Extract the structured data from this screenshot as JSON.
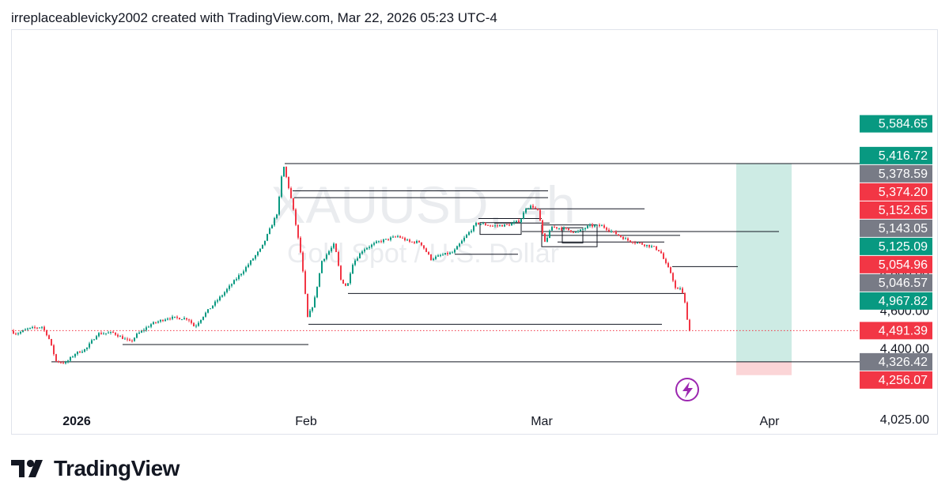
{
  "header": {
    "attribution": "irreplaceablevicky2002 created with TradingView.com, Mar 22, 2026 05:23 UTC-4"
  },
  "brand": {
    "name": "TradingView",
    "icon": "tradingview-logo-icon"
  },
  "watermark": {
    "symbol": "XAUUSD, 4h",
    "description": "Gold Spot / U.S. Dollar"
  },
  "flash_icon": "lightning-icon",
  "colors": {
    "up": "#089981",
    "down": "#f23645",
    "neutral": "#787b86",
    "line": "#131722",
    "target_zone": "#cdebe4",
    "stop_zone": "#fbd5d7",
    "current_line": "#f23645"
  },
  "chart_data": {
    "type": "candlestick",
    "symbol": "XAUUSD",
    "timeframe": "4h",
    "x_ticks": [
      "2026",
      "Feb",
      "Mar",
      "Apr"
    ],
    "y_ticks": [
      "4,800.00",
      "4,600.00",
      "4,400.00",
      "4,025.00"
    ],
    "y_range": [
      4025,
      5584.65
    ],
    "price_labels": [
      {
        "value": 5584.65,
        "text": "5,584.65",
        "kind": "up"
      },
      {
        "value": 5416.72,
        "text": "5,416.72",
        "kind": "up"
      },
      {
        "value": 5378.59,
        "text": "5,378.59",
        "kind": "neutral"
      },
      {
        "value": 5374.2,
        "text": "5,374.20",
        "kind": "down"
      },
      {
        "value": 5152.65,
        "text": "5,152.65",
        "kind": "down"
      },
      {
        "value": 5143.05,
        "text": "5,143.05",
        "kind": "neutral"
      },
      {
        "value": 5125.09,
        "text": "5,125.09",
        "kind": "up"
      },
      {
        "value": 5054.96,
        "text": "5,054.96",
        "kind": "down"
      },
      {
        "value": 5046.57,
        "text": "5,046.57",
        "kind": "neutral"
      },
      {
        "value": 4967.82,
        "text": "4,967.82",
        "kind": "up"
      },
      {
        "value": 4491.39,
        "text": "4,491.39",
        "kind": "down"
      },
      {
        "value": 4326.42,
        "text": "4,326.42",
        "kind": "neutral"
      },
      {
        "value": 4256.07,
        "text": "4,256.07",
        "kind": "down"
      }
    ],
    "current_price": 4491.39,
    "position": {
      "entry": 4326.42,
      "target": 5374.2,
      "stop": 4256.07
    }
  }
}
